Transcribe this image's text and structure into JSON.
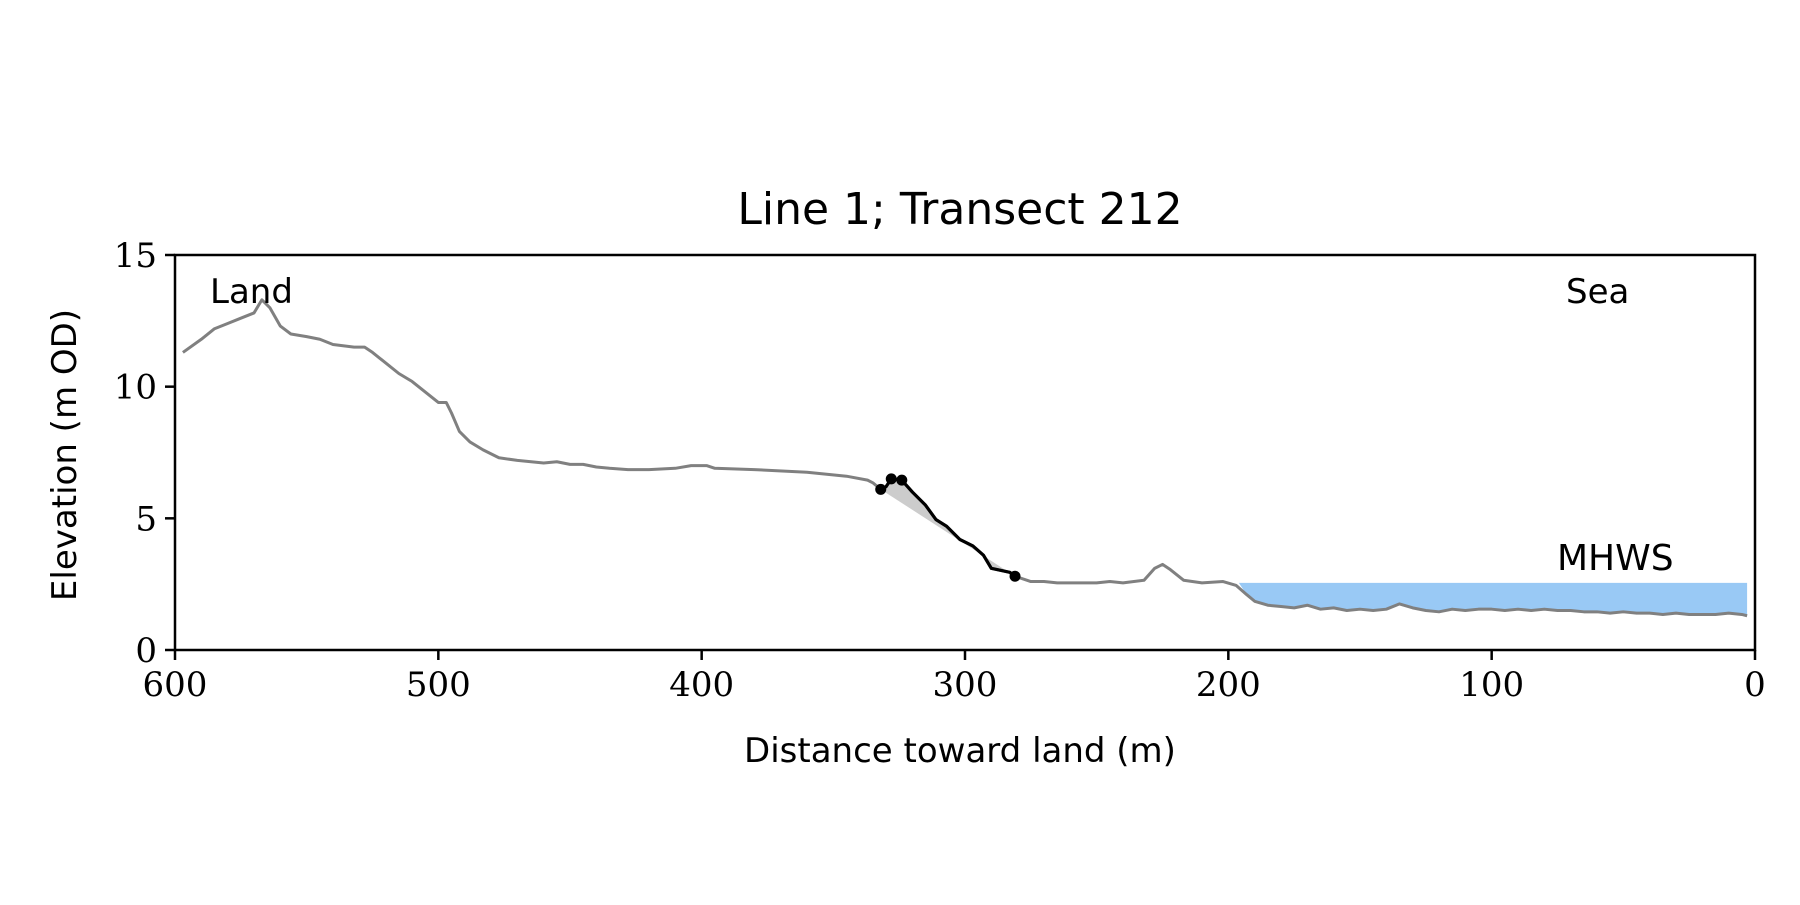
{
  "chart_data": {
    "type": "line",
    "title": "Line 1; Transect 212",
    "xlabel": "Distance toward land (m)",
    "ylabel": "Elevation (m OD)",
    "xlim": [
      600,
      0
    ],
    "ylim": [
      0,
      15
    ],
    "x_ticks": [
      600,
      500,
      400,
      300,
      200,
      100,
      0
    ],
    "y_ticks": [
      0,
      5,
      10,
      15
    ],
    "grid": false,
    "annotations": {
      "land": "Land",
      "sea": "Sea",
      "mhws": "MHWS"
    },
    "mhws": {
      "elevation": 2.55,
      "x_from": 196,
      "x_to": 3
    },
    "colors": {
      "profile": "#808080",
      "cliff": "#000000",
      "cliff_fill": "#cccccc",
      "mhws_fill": "#99c9f5",
      "mhws_text": "#6a9bc8"
    },
    "series": [
      {
        "role": "profile",
        "points": [
          [
            597,
            11.3
          ],
          [
            590,
            11.8
          ],
          [
            585,
            12.2
          ],
          [
            580,
            12.4
          ],
          [
            575,
            12.6
          ],
          [
            570,
            12.8
          ],
          [
            567,
            13.3
          ],
          [
            564,
            13.0
          ],
          [
            560,
            12.3
          ],
          [
            556,
            12.0
          ],
          [
            550,
            11.9
          ],
          [
            545,
            11.8
          ],
          [
            540,
            11.6
          ],
          [
            532,
            11.5
          ],
          [
            528,
            11.5
          ],
          [
            525,
            11.3
          ],
          [
            520,
            10.9
          ],
          [
            515,
            10.5
          ],
          [
            510,
            10.2
          ],
          [
            505,
            9.8
          ],
          [
            500,
            9.4
          ],
          [
            497,
            9.4
          ],
          [
            495,
            9.0
          ],
          [
            492,
            8.3
          ],
          [
            488,
            7.9
          ],
          [
            483,
            7.6
          ],
          [
            477,
            7.3
          ],
          [
            470,
            7.2
          ],
          [
            460,
            7.1
          ],
          [
            455,
            7.15
          ],
          [
            450,
            7.05
          ],
          [
            445,
            7.05
          ],
          [
            440,
            6.95
          ],
          [
            435,
            6.9
          ],
          [
            428,
            6.85
          ],
          [
            420,
            6.85
          ],
          [
            410,
            6.9
          ],
          [
            404,
            7.0
          ],
          [
            398,
            7.0
          ],
          [
            395,
            6.9
          ],
          [
            380,
            6.85
          ],
          [
            360,
            6.75
          ],
          [
            345,
            6.6
          ],
          [
            337,
            6.45
          ],
          [
            335,
            6.35
          ],
          [
            332,
            6.1
          ],
          [
            330,
            6.2
          ],
          [
            328,
            6.5
          ],
          [
            324,
            6.45
          ],
          [
            320,
            6.0
          ],
          [
            315,
            5.5
          ],
          [
            311,
            4.95
          ],
          [
            307,
            4.7
          ],
          [
            302,
            4.2
          ],
          [
            297,
            3.95
          ],
          [
            293,
            3.6
          ],
          [
            290,
            3.1
          ],
          [
            283,
            2.95
          ],
          [
            281,
            2.8
          ],
          [
            275,
            2.6
          ],
          [
            270,
            2.6
          ],
          [
            265,
            2.55
          ],
          [
            250,
            2.55
          ],
          [
            245,
            2.6
          ],
          [
            240,
            2.55
          ],
          [
            232,
            2.65
          ],
          [
            228,
            3.1
          ],
          [
            225,
            3.25
          ],
          [
            222,
            3.05
          ],
          [
            217,
            2.65
          ],
          [
            210,
            2.55
          ],
          [
            202,
            2.6
          ],
          [
            197,
            2.45
          ],
          [
            193,
            2.1
          ],
          [
            190,
            1.85
          ],
          [
            185,
            1.7
          ],
          [
            180,
            1.65
          ],
          [
            175,
            1.6
          ],
          [
            170,
            1.7
          ],
          [
            165,
            1.55
          ],
          [
            160,
            1.6
          ],
          [
            155,
            1.5
          ],
          [
            150,
            1.55
          ],
          [
            145,
            1.5
          ],
          [
            140,
            1.55
          ],
          [
            135,
            1.75
          ],
          [
            130,
            1.6
          ],
          [
            125,
            1.5
          ],
          [
            120,
            1.45
          ],
          [
            115,
            1.55
          ],
          [
            110,
            1.5
          ],
          [
            105,
            1.55
          ],
          [
            100,
            1.55
          ],
          [
            95,
            1.5
          ],
          [
            90,
            1.55
          ],
          [
            85,
            1.5
          ],
          [
            80,
            1.55
          ],
          [
            75,
            1.5
          ],
          [
            70,
            1.5
          ],
          [
            65,
            1.45
          ],
          [
            60,
            1.45
          ],
          [
            55,
            1.4
          ],
          [
            50,
            1.45
          ],
          [
            45,
            1.4
          ],
          [
            40,
            1.4
          ],
          [
            35,
            1.35
          ],
          [
            30,
            1.4
          ],
          [
            25,
            1.35
          ],
          [
            20,
            1.35
          ],
          [
            15,
            1.35
          ],
          [
            10,
            1.4
          ],
          [
            5,
            1.35
          ],
          [
            3,
            1.3
          ]
        ]
      },
      {
        "role": "cliff",
        "points": [
          [
            332,
            6.1
          ],
          [
            330,
            6.2
          ],
          [
            328,
            6.5
          ],
          [
            324,
            6.45
          ],
          [
            320,
            6.0
          ],
          [
            315,
            5.5
          ],
          [
            311,
            4.95
          ],
          [
            307,
            4.7
          ],
          [
            302,
            4.2
          ],
          [
            297,
            3.95
          ],
          [
            293,
            3.6
          ],
          [
            290,
            3.1
          ],
          [
            283,
            2.95
          ],
          [
            281,
            2.8
          ]
        ],
        "markers": [
          [
            332,
            6.1
          ],
          [
            328,
            6.5
          ],
          [
            324,
            6.45
          ],
          [
            281,
            2.8
          ]
        ]
      }
    ]
  }
}
